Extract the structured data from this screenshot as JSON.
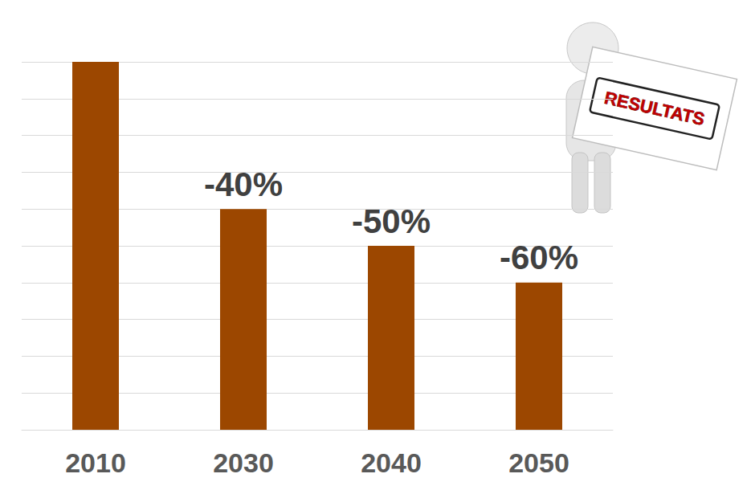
{
  "chart_data": {
    "type": "bar",
    "categories": [
      "2010",
      "2030",
      "2040",
      "2050"
    ],
    "values": [
      10,
      6,
      5,
      4
    ],
    "color": "#9c4700",
    "ylim": [
      0,
      10
    ],
    "yticks": [
      0,
      1,
      2,
      3,
      4,
      5,
      6,
      7,
      8,
      9,
      10
    ],
    "grid": true,
    "tick_labels": "x",
    "annotations": [
      {
        "x": "2030",
        "text": "-40%"
      },
      {
        "x": "2040",
        "text": "-50%"
      },
      {
        "x": "2050",
        "text": "-60%"
      },
      {
        "text": "RESULTATS"
      }
    ]
  }
}
